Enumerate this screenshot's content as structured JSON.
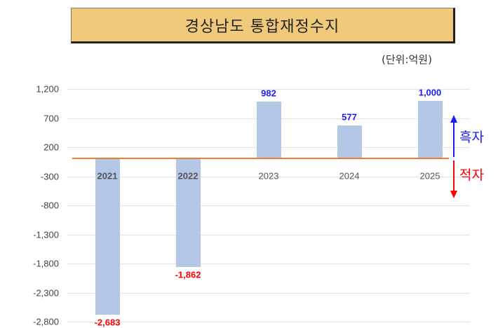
{
  "title": "경상남도  통합재정수지",
  "unit": "(단위:억원)",
  "colors": {
    "title_bg": "#f0c97a",
    "bar": "#b4c7e7",
    "zero_line": "#ed7d31",
    "positive": "#1a1aff",
    "negative": "#ff0000"
  },
  "legend": {
    "surplus": "흑자",
    "deficit": "적자"
  },
  "chart_data": {
    "type": "bar",
    "title": "경상남도 통합재정수지",
    "subtitle": "(단위:억원)",
    "xlabel": "",
    "ylabel": "",
    "categories": [
      "2021",
      "2022",
      "2023",
      "2024",
      "2025"
    ],
    "values": [
      -2683,
      -1862,
      982,
      577,
      1000
    ],
    "value_labels": [
      "-2,683",
      "-1,862",
      "982",
      "577",
      "1,000"
    ],
    "yticks": [
      "1,200",
      "700",
      "200",
      "-300",
      "-800",
      "-1,300",
      "-1,800",
      "-2,300",
      "-2,800"
    ],
    "ylim": [
      -2800,
      1200
    ],
    "grid": true,
    "annotations": [
      {
        "text": "흑자",
        "color": "#1a1aff",
        "arrow": "up"
      },
      {
        "text": "적자",
        "color": "#ff0000",
        "arrow": "down"
      }
    ]
  }
}
